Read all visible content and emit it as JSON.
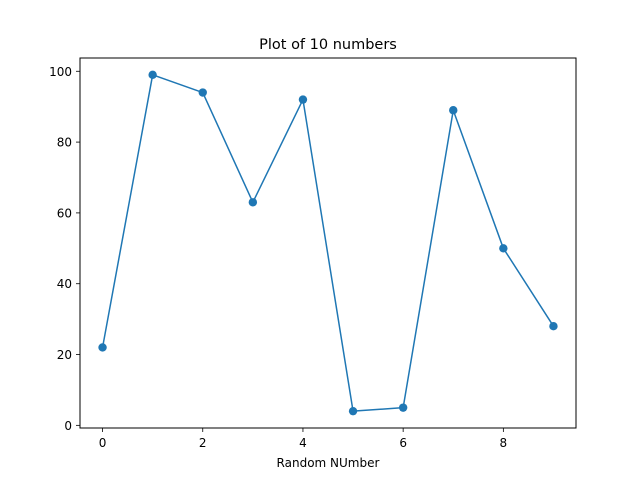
{
  "chart_data": {
    "type": "line",
    "title": "Plot of 10 numbers",
    "xlabel": "Random NUmber",
    "ylabel": "",
    "x": [
      0,
      1,
      2,
      3,
      4,
      5,
      6,
      7,
      8,
      9
    ],
    "series": [
      {
        "values": [
          22,
          99,
          94,
          63,
          92,
          4,
          5,
          89,
          50,
          28
        ]
      }
    ],
    "xlim": [
      -0.45,
      9.45
    ],
    "ylim": [
      -0.75,
      103.75
    ],
    "xticks": [
      0,
      2,
      4,
      6,
      8
    ],
    "yticks": [
      0,
      20,
      40,
      60,
      80,
      100
    ],
    "marker": "circle",
    "grid": false,
    "colors": {
      "line": "#1f77b4",
      "marker": "#1f77b4",
      "axes": "#000000"
    }
  }
}
